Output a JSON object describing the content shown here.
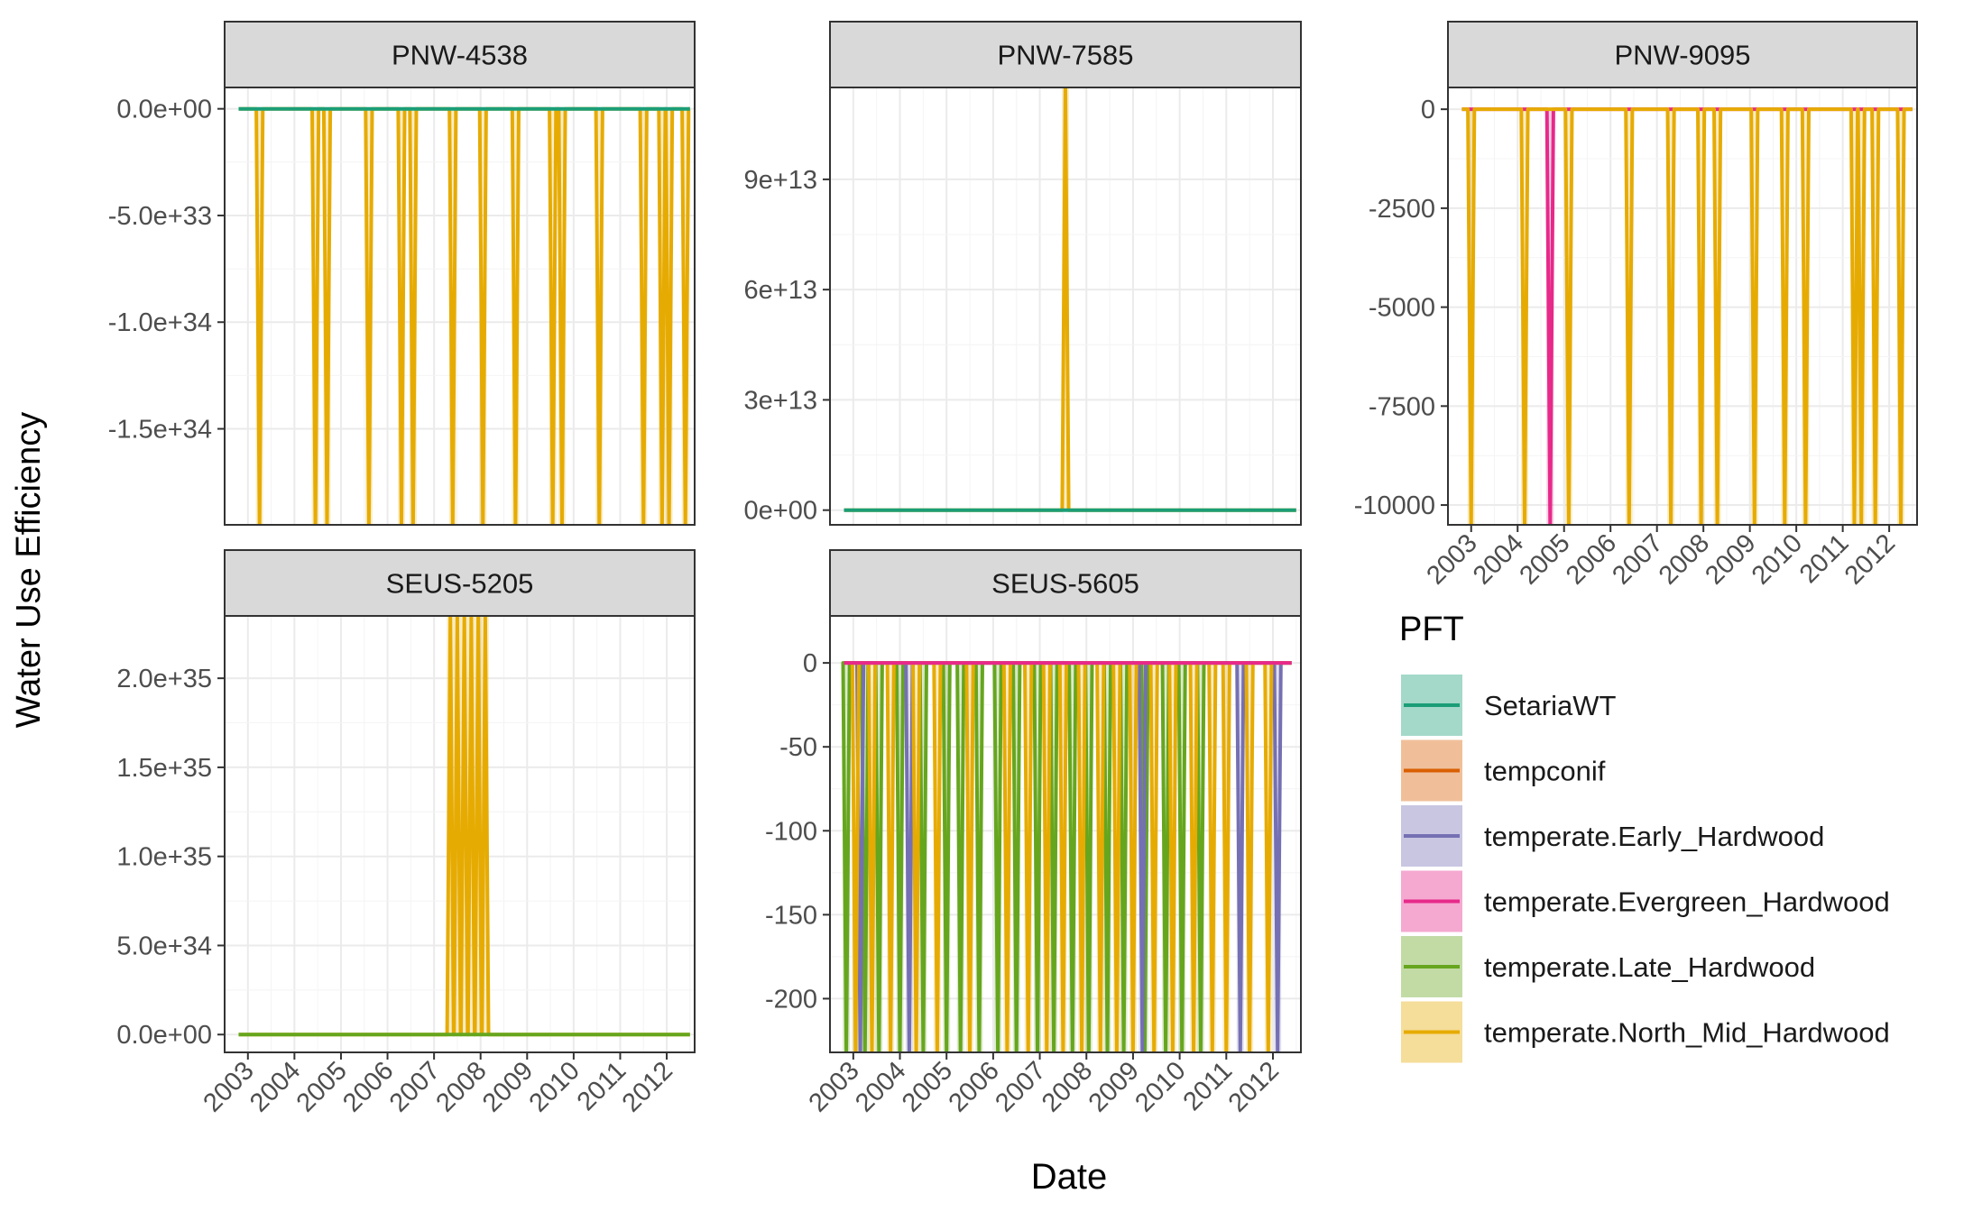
{
  "page": {
    "ylabel": "Water Use Efficiency",
    "xlabel": "Date",
    "legend_title": "PFT"
  },
  "legend": [
    {
      "name": "SetariaWT",
      "color": "#1b9e77"
    },
    {
      "name": "tempconif",
      "color": "#d95f02"
    },
    {
      "name": "temperate.Early_Hardwood",
      "color": "#7570b3"
    },
    {
      "name": "temperate.Evergreen_Hardwood",
      "color": "#e7298a"
    },
    {
      "name": "temperate.Late_Hardwood",
      "color": "#66a61e"
    },
    {
      "name": "temperate.North_Mid_Hardwood",
      "color": "#e6ab02"
    }
  ],
  "chart_data": [
    {
      "type": "line",
      "title": "PNW-4538",
      "xlim": [
        2002.5,
        2012.6
      ],
      "ylim": [
        -1.95e+34,
        1e+33
      ],
      "yticks": [
        0,
        -5e+33,
        -1e+34,
        -1.5e+34
      ],
      "ytick_labels": [
        "0.0e+00",
        "-5.0e+33",
        "-1.0e+34",
        "-1.5e+34"
      ],
      "xtick_labels": [],
      "series": [
        {
          "name": "temperate.North_Mid_Hardwood",
          "color": "#e6ab02",
          "spike_years": [
            2003.25,
            2004.45,
            2004.7,
            2005.6,
            2006.3,
            2006.55,
            2007.4,
            2008.05,
            2008.75,
            2009.55,
            2009.75,
            2010.55,
            2011.5,
            2011.9,
            2012.05,
            2012.4
          ],
          "spike_to": -1.95e+34,
          "x_range": [
            2002.8,
            2012.5
          ]
        },
        {
          "name": "SetariaWT",
          "color": "#1b9e77",
          "spike_years": [],
          "spike_to": 0,
          "x_range": [
            2002.8,
            2012.5
          ]
        }
      ]
    },
    {
      "type": "line",
      "title": "PNW-7585",
      "xlim": [
        2002.5,
        2012.6
      ],
      "ylim": [
        -4000000000000.0,
        115000000000000.0
      ],
      "yticks": [
        0,
        30000000000000.0,
        60000000000000.0,
        90000000000000.0
      ],
      "ytick_labels": [
        "0e+00",
        "3e+13",
        "6e+13",
        "9e+13"
      ],
      "xtick_labels": [],
      "series": [
        {
          "name": "temperate.North_Mid_Hardwood",
          "color": "#e6ab02",
          "spike_years": [
            2007.55
          ],
          "spike_to": 115000000000000.0,
          "x_range": [
            2002.8,
            2012.5
          ]
        },
        {
          "name": "SetariaWT",
          "color": "#1b9e77",
          "spike_years": [],
          "spike_to": 0,
          "x_range": [
            2002.8,
            2012.5
          ]
        }
      ]
    },
    {
      "type": "line",
      "title": "PNW-9095",
      "xlim": [
        2002.5,
        2012.6
      ],
      "ylim": [
        -10500,
        550
      ],
      "yticks": [
        0,
        -2500,
        -5000,
        -7500,
        -10000
      ],
      "ytick_labels": [
        "0",
        "-2500",
        "-5000",
        "-7500",
        "-10000"
      ],
      "xtick_labels": [
        "2003",
        "2004",
        "2005",
        "2006",
        "2007",
        "2008",
        "2009",
        "2010",
        "2011",
        "2012"
      ],
      "series": [
        {
          "name": "temperate.Evergreen_Hardwood",
          "color": "#e7298a",
          "spike_years": [
            2004.7
          ],
          "spike_to": -10500,
          "x_range": [
            2002.8,
            2012.5
          ]
        },
        {
          "name": "temperate.North_Mid_Hardwood",
          "color": "#e6ab02",
          "spike_years": [
            2003.0,
            2004.15,
            2005.1,
            2006.4,
            2007.3,
            2007.95,
            2008.3,
            2009.1,
            2009.75,
            2010.2,
            2011.25,
            2011.4,
            2011.7,
            2012.25
          ],
          "spike_to": -10500,
          "x_range": [
            2002.8,
            2012.5
          ]
        }
      ]
    },
    {
      "type": "line",
      "title": "SEUS-5205",
      "xlim": [
        2002.5,
        2012.6
      ],
      "ylim": [
        -1e+34,
        2.35e+35
      ],
      "yticks": [
        0,
        5e+34,
        1e+35,
        1.5e+35,
        2e+35
      ],
      "ytick_labels": [
        "0.0e+00",
        "5.0e+34",
        "1.0e+35",
        "1.5e+35",
        "2.0e+35"
      ],
      "xtick_labels": [
        "2003",
        "2004",
        "2005",
        "2006",
        "2007",
        "2008",
        "2009",
        "2010",
        "2011",
        "2012"
      ],
      "series": [
        {
          "name": "temperate.North_Mid_Hardwood",
          "color": "#e6ab02",
          "spike_years": [
            2007.35,
            2007.5,
            2007.65,
            2007.8,
            2007.95,
            2008.1
          ],
          "spike_to": 2.35e+35,
          "x_range": [
            2002.8,
            2012.5
          ]
        },
        {
          "name": "temperate.Late_Hardwood",
          "color": "#66a61e",
          "spike_years": [],
          "spike_to": 0,
          "x_range": [
            2002.8,
            2012.5
          ]
        }
      ]
    },
    {
      "type": "line",
      "title": "SEUS-5605",
      "xlim": [
        2002.5,
        2012.6
      ],
      "ylim": [
        -232,
        28
      ],
      "yticks": [
        0,
        -50,
        -100,
        -150,
        -200
      ],
      "ytick_labels": [
        "0",
        "-50",
        "-100",
        "-150",
        "-200"
      ],
      "xtick_labels": [
        "2003",
        "2004",
        "2005",
        "2006",
        "2007",
        "2008",
        "2009",
        "2010",
        "2011",
        "2012"
      ],
      "series": [
        {
          "name": "temperate.Late_Hardwood",
          "color": "#66a61e",
          "spike_years": [
            2002.85,
            2003.25,
            2003.55,
            2004.0,
            2004.5,
            2005.0,
            2005.3,
            2005.7,
            2006.1,
            2006.5,
            2006.95,
            2007.3,
            2007.7,
            2008.05,
            2008.45,
            2008.8,
            2009.25,
            2009.7,
            2010.05,
            2010.45
          ],
          "spike_to": -232,
          "x_range": [
            2002.8,
            2012.4
          ]
        },
        {
          "name": "temperate.Early_Hardwood",
          "color": "#7570b3",
          "spike_years": [
            2003.15,
            2004.2,
            2009.2,
            2011.3,
            2012.1
          ],
          "spike_to": -232,
          "x_range": [
            2002.8,
            2012.4
          ]
        },
        {
          "name": "temperate.North_Mid_Hardwood",
          "color": "#e6ab02",
          "spike_years": [
            2003.05,
            2003.4,
            2003.8,
            2004.35,
            2004.8,
            2005.5,
            2006.3,
            2006.75,
            2007.15,
            2007.5,
            2007.9,
            2008.3,
            2008.65,
            2009.0,
            2009.45,
            2009.85,
            2010.3,
            2010.7,
            2011.0,
            2011.5,
            2011.9
          ],
          "spike_to": -232,
          "x_range": [
            2002.8,
            2012.4
          ]
        },
        {
          "name": "temperate.Evergreen_Hardwood",
          "color": "#e7298a",
          "spike_years": [],
          "spike_to": 0,
          "x_range": [
            2002.8,
            2012.4
          ]
        }
      ]
    }
  ]
}
